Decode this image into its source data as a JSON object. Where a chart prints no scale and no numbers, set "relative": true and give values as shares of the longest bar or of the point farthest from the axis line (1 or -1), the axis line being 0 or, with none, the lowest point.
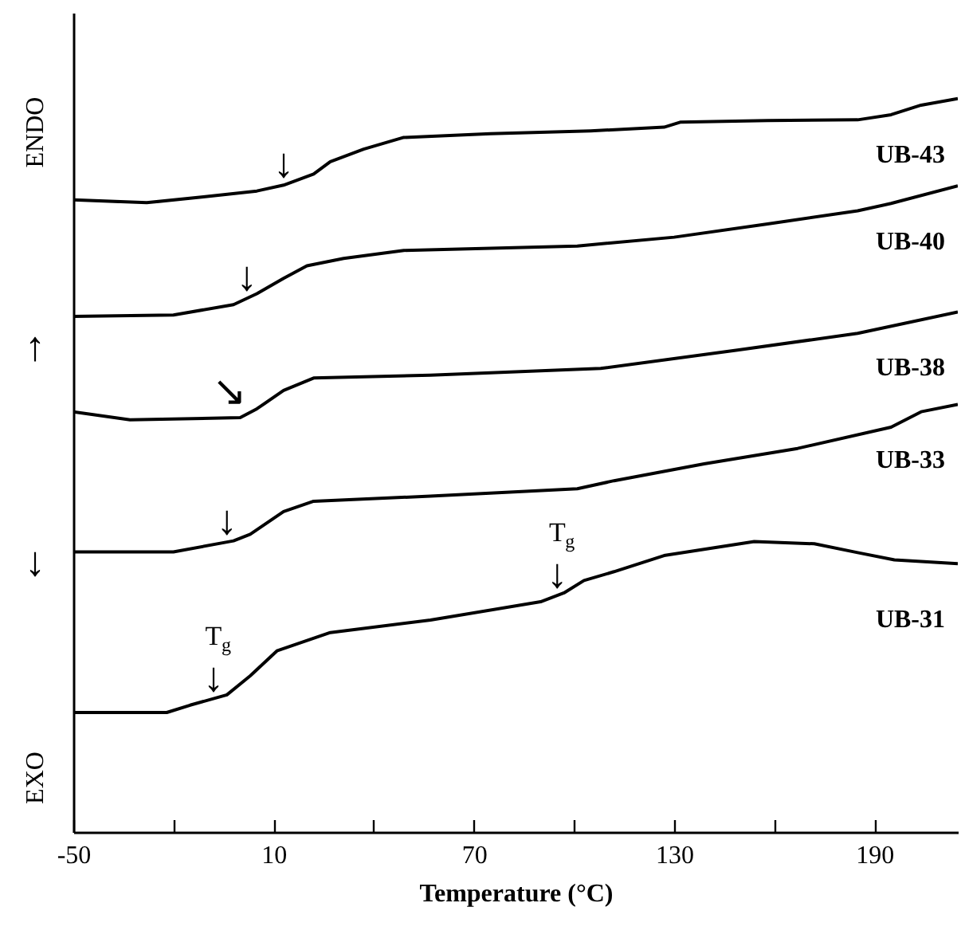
{
  "chart_data": {
    "type": "line",
    "relative": true,
    "xlabel": "Temperature (°C)",
    "xlim": [
      -50,
      215
    ],
    "xticks": [
      -50,
      {
        "value": -20,
        "label": null
      },
      10,
      {
        "value": 40,
        "label": null
      },
      70,
      {
        "value": 100,
        "label": null
      },
      130,
      {
        "value": 160,
        "label": null
      },
      190
    ],
    "grid": false,
    "line_style": "solid",
    "series": [
      {
        "name": "UB-43",
        "color": "#000000",
        "x": [
          -50,
          -28,
          -11,
          5,
          13,
          22,
          27,
          37,
          49,
          75,
          105,
          127,
          132,
          158,
          185,
          195,
          204,
          215
        ],
        "values": [
          0.862,
          0.858,
          0.866,
          0.874,
          0.882,
          0.897,
          0.914,
          0.931,
          0.947,
          0.952,
          0.956,
          0.961,
          0.968,
          0.97,
          0.971,
          0.978,
          0.991,
          1.0
        ]
      },
      {
        "name": "UB-40",
        "color": "#000000",
        "x": [
          -50,
          -20,
          -2,
          5,
          13,
          20,
          31,
          49,
          101,
          130,
          158,
          185,
          195,
          215
        ],
        "values": [
          0.703,
          0.705,
          0.719,
          0.734,
          0.755,
          0.772,
          0.782,
          0.793,
          0.799,
          0.811,
          0.829,
          0.847,
          0.857,
          0.881
        ]
      },
      {
        "name": "UB-38",
        "color": "#000000",
        "x": [
          -50,
          -33,
          0,
          5,
          13,
          22,
          57,
          108,
          149,
          185,
          215
        ],
        "values": [
          0.573,
          0.562,
          0.565,
          0.577,
          0.602,
          0.619,
          0.623,
          0.632,
          0.657,
          0.68,
          0.709
        ]
      },
      {
        "name": "UB-33",
        "color": "#000000",
        "x": [
          -50,
          -20,
          -2,
          3,
          13,
          22,
          57,
          101,
          112,
          139,
          167,
          195,
          204,
          215
        ],
        "values": [
          0.382,
          0.382,
          0.397,
          0.406,
          0.437,
          0.451,
          0.458,
          0.468,
          0.479,
          0.502,
          0.523,
          0.552,
          0.573,
          0.583
        ]
      },
      {
        "name": "UB-31",
        "color": "#000000",
        "x": [
          -50,
          -22,
          -15,
          -4,
          3,
          11,
          27,
          57,
          90,
          97,
          103,
          112,
          127,
          154,
          172,
          185,
          196,
          215
        ],
        "values": [
          0.163,
          0.163,
          0.173,
          0.187,
          0.213,
          0.247,
          0.272,
          0.289,
          0.314,
          0.326,
          0.343,
          0.355,
          0.377,
          0.396,
          0.393,
          0.381,
          0.371,
          0.366
        ]
      }
    ],
    "annotations": [
      "ENDO",
      "↑",
      "↓",
      "EXO",
      {
        "text": "↓",
        "x": 13,
        "y": 0.882
      },
      {
        "text": "↓",
        "x": 2,
        "y": 0.728
      },
      {
        "text": "↘",
        "x": 2,
        "y": 0.571
      },
      {
        "text": "↓",
        "x": -4,
        "y": 0.395
      },
      {
        "text": "↓",
        "x": -8,
        "y": 0.182
      },
      {
        "text": "T$_{g}$",
        "x": -8,
        "y": 0.182
      },
      {
        "text": "↓",
        "x": 95,
        "y": 0.323
      },
      {
        "text": "T$_{g}$",
        "x": 95,
        "y": 0.323
      }
    ]
  }
}
